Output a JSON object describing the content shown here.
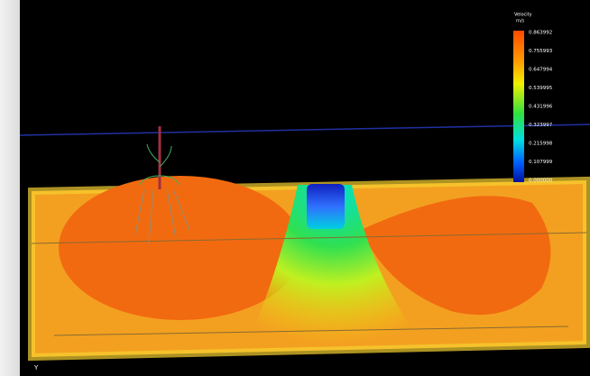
{
  "legend": {
    "title": "Velocity",
    "unit": "m/s",
    "labels": [
      "0.863992",
      "0.755993",
      "0.647994",
      "0.539995",
      "0.431996",
      "0.323997",
      "0.215998",
      "0.107999",
      "0.000000"
    ]
  },
  "axis_label": "Y"
}
